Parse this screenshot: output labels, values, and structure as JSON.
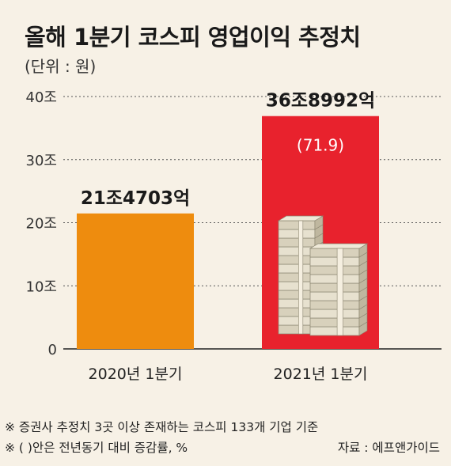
{
  "title": "올해 1분기 코스피 영업이익 추정치",
  "unit_label": "(단위 : 원)",
  "chart_data": {
    "type": "bar",
    "title": "올해 1분기 코스피 영업이익 추정치",
    "categories": [
      "2020년 1분기",
      "2021년 1분기"
    ],
    "values": [
      21.4703,
      36.8992
    ],
    "value_labels": [
      "21조4703억",
      "36조8992억"
    ],
    "change_labels": [
      "",
      "(71.9)"
    ],
    "bar_colors": [
      "#ee8c0e",
      "#e8222d"
    ],
    "ylim": [
      0,
      40
    ],
    "yticks": [
      0,
      10,
      20,
      30,
      40
    ],
    "ytick_labels": [
      "0",
      "10조",
      "20조",
      "30조",
      "40조"
    ],
    "grid": true,
    "legend": "none"
  },
  "notes": [
    "※ 증권사 추정치 3곳 이상 존재하는 코스피 133개 기업 기준",
    "※ (  )안은 전년동기 대비 증감률, %"
  ],
  "source": "자료 : 에프앤가이드"
}
